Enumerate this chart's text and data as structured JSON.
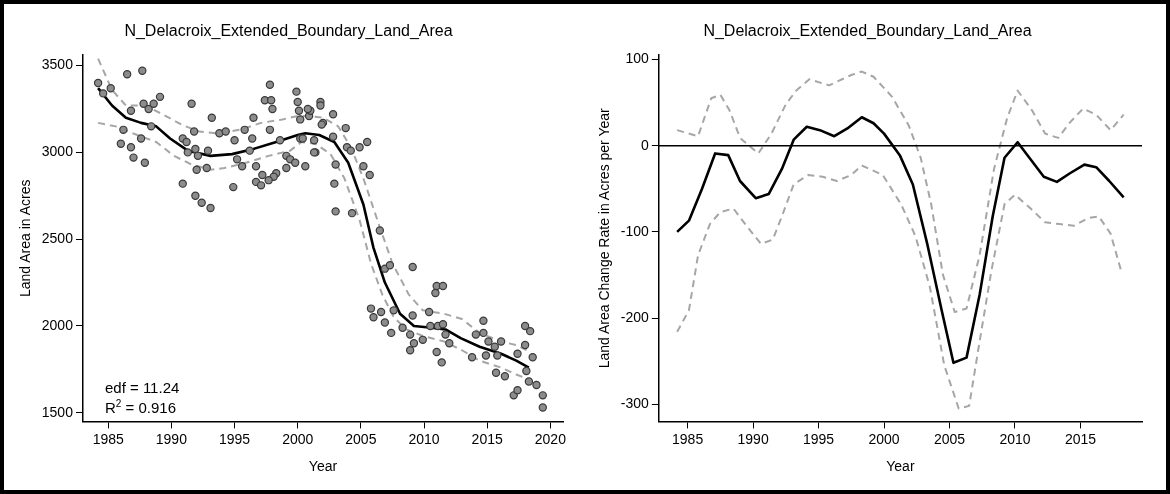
{
  "chart_data": [
    {
      "type": "scatter",
      "title": "N_Delacroix_Extended_Boundary_Land_Area",
      "xlabel": "Year",
      "ylabel": "Land Area in Acres",
      "xlim": [
        1983,
        2021
      ],
      "xticks": [
        1985,
        1990,
        1995,
        2000,
        2005,
        2010,
        2015,
        2020
      ],
      "ylim": [
        1450,
        3560
      ],
      "yticks": [
        1500,
        2000,
        2500,
        3000,
        3500
      ],
      "annotations": [
        "edf = 11.24",
        "R$^{2}$ = 0.916"
      ],
      "series": [
        {
          "marker": "circle",
          "color": "#8c8c8c",
          "x": [
            1984.2,
            1984.6,
            1985.2,
            1986.5,
            1987.7,
            1986.8,
            1986.2,
            1986.0,
            1986.8,
            1987.0,
            1987.9,
            1987.6,
            1987.8,
            1988.2,
            1988.6,
            1989.1,
            1988.4,
            1991.6,
            1990.9,
            1991.2,
            1991.3,
            1990.9,
            1991.9,
            1992.1,
            1992.0,
            1992.8,
            1992.9,
            1993.2,
            1991.9,
            1992.4,
            1993.1,
            1991.8,
            1993.8,
            1994.3,
            1994.9,
            1995.0,
            1995.2,
            1995.6,
            1995.8,
            1996.5,
            1996.4,
            1996.2,
            1996.7,
            1996.7,
            1997.1,
            1997.2,
            1997.4,
            1997.8,
            1997.9,
            1998.0,
            1997.8,
            1998.3,
            1998.1,
            1997.7,
            1998.6,
            1999.1,
            1999.1,
            1999.4,
            1999.8,
            1999.9,
            2000.0,
            2000.1,
            2000.6,
            2000.9,
            2001.0,
            2001.4,
            2001.8,
            2001.8,
            2002.0,
            2001.3,
            2000.2,
            2000.2,
            2000.8,
            2000.4,
            2001.3,
            2001.9,
            2002.8,
            2002.8,
            2003.8,
            2003.9,
            2004.2,
            2004.9,
            2005.5,
            2005.2,
            2005.7,
            2003.0,
            2002.9,
            2003.0,
            2004.3,
            2006.5,
            2006.9,
            2007.3,
            2009.1,
            2005.8,
            2006.0,
            2006.6,
            2006.9,
            2007.4,
            2007.6,
            2008.3,
            2008.9,
            2008.9,
            2009.2,
            2009.9,
            2009.1,
            2010.4,
            2010.9,
            2011.0,
            2011.5,
            2010.5,
            2011.1,
            2011.5,
            2011.7,
            2012.0,
            2011.0,
            2011.4,
            2013.8,
            2014.1,
            2014.7,
            2014.7,
            2015.1,
            2014.9,
            2015.6,
            2015.8,
            2016.1,
            2015.7,
            2016.4,
            2017.1,
            2017.4,
            2017.4,
            2018.0,
            2018.4,
            2018.0,
            2018.6,
            2018.1,
            2018.3,
            2018.9,
            2019.4,
            2019.4
          ],
          "values": [
            3400,
            3340,
            3370,
            3450,
            3470,
            3240,
            3130,
            3050,
            3030,
            2970,
            2940,
            3080,
            3280,
            3250,
            3280,
            3320,
            3150,
            3280,
            3080,
            3060,
            3000,
            2820,
            3020,
            2980,
            2900,
            2910,
            3010,
            3200,
            2750,
            2710,
            2680,
            3120,
            3110,
            3120,
            2800,
            3070,
            2960,
            2920,
            3130,
            3200,
            3080,
            3010,
            2920,
            2830,
            2810,
            2870,
            3300,
            3390,
            3300,
            3250,
            3130,
            2880,
            2860,
            2840,
            3070,
            2980,
            2910,
            2960,
            2940,
            3350,
            3290,
            3240,
            2920,
            3210,
            3240,
            3000,
            3290,
            3270,
            3170,
            3070,
            3080,
            3190,
            3250,
            3080,
            3000,
            3160,
            3220,
            3090,
            3140,
            3030,
            3010,
            3030,
            3060,
            2920,
            2870,
            2930,
            2820,
            2660,
            2650,
            2550,
            2330,
            2350,
            2340,
            2100,
            2050,
            2080,
            2020,
            1960,
            2090,
            1990,
            1950,
            1860,
            1900,
            1920,
            2060,
            2080,
            2190,
            2230,
            2230,
            2000,
            2000,
            2010,
            1950,
            1900,
            1850,
            1790,
            1820,
            1950,
            2030,
            1960,
            1910,
            1830,
            1880,
            1830,
            1910,
            1730,
            1710,
            1600,
            1630,
            1840,
            2000,
            1970,
            1890,
            1820,
            1740,
            1680,
            1660,
            1600,
            1530
          ]
        },
        {
          "type": "line",
          "line_style": "dashed",
          "color": "#a6a6a6",
          "x": [
            1984.2,
            1985.3,
            1986.4,
            1987.9,
            1989.3,
            1990.8,
            1992.2,
            1993.6,
            1995.4,
            1997.1,
            1998.8,
            2000.0,
            2000.9,
            2002.0,
            2003.2,
            2004.2,
            2005.2,
            2006.4,
            2007.5,
            2008.8,
            2009.9,
            2011.6,
            2013.0,
            2014.4,
            2016.1,
            2017.3,
            2018.4
          ],
          "values": [
            3540,
            3360,
            3270,
            3270,
            3220,
            3160,
            3120,
            3110,
            3130,
            3170,
            3190,
            3210,
            3210,
            3200,
            3150,
            3030,
            2850,
            2590,
            2360,
            2180,
            2090,
            2070,
            2040,
            1960,
            1910,
            1890,
            1850
          ]
        },
        {
          "type": "line",
          "line_style": "dashed",
          "color": "#a6a6a6",
          "x": [
            1984.2,
            1985.6,
            1987.3,
            1988.8,
            1990.2,
            1991.6,
            1993.1,
            1994.2,
            1995.9,
            1997.7,
            1999.4,
            2000.3,
            2001.4,
            2002.6,
            2003.7,
            2004.9,
            2005.8,
            2006.7,
            2007.6,
            2008.6,
            2010.0,
            2011.6,
            2013.0,
            2014.4,
            2016.1,
            2017.3,
            2018.4
          ],
          "values": [
            3170,
            3150,
            3100,
            3060,
            2980,
            2930,
            2900,
            2910,
            2940,
            2980,
            3010,
            3060,
            3050,
            2990,
            2850,
            2610,
            2360,
            2180,
            2050,
            1980,
            1940,
            1910,
            1860,
            1800,
            1760,
            1720,
            1690
          ]
        },
        {
          "type": "line",
          "line_style": "solid",
          "color": "#000000",
          "x": [
            1984.2,
            1985.3,
            1986.4,
            1987.6,
            1988.8,
            1989.9,
            1991.3,
            1993.1,
            1994.8,
            1996.5,
            1998.3,
            2000.0,
            2000.6,
            2001.7,
            2002.9,
            2004.0,
            2005.2,
            2006.0,
            2006.9,
            2008.1,
            2009.2,
            2010.6,
            2011.7,
            2012.9,
            2014.4,
            2016.1,
            2017.3,
            2018.3
          ],
          "values": [
            3370,
            3270,
            3200,
            3170,
            3150,
            3080,
            3010,
            2980,
            2990,
            3020,
            3060,
            3100,
            3110,
            3100,
            3060,
            2940,
            2700,
            2450,
            2250,
            2070,
            2000,
            1990,
            1980,
            1930,
            1880,
            1840,
            1800,
            1760
          ]
        }
      ]
    },
    {
      "type": "line",
      "title": "N_Delacroix_Extended_Boundary_Land_Area",
      "xlabel": "Year",
      "ylabel": "Land Area Change Rate in Acres per Year",
      "xlim": [
        1982.8,
        2019.7
      ],
      "xticks": [
        1985,
        1990,
        1995,
        2000,
        2005,
        2010,
        2015
      ],
      "ylim": [
        -320,
        105
      ],
      "yticks": [
        -300,
        -200,
        -100,
        0,
        100
      ],
      "ref_lines": [
        {
          "axis": "y",
          "value": 0,
          "color": "#000000"
        }
      ],
      "series": [
        {
          "line_style": "dashed",
          "color": "#a6a6a6",
          "x": [
            1984.2,
            1985.8,
            1986.8,
            1987.5,
            1988.2,
            1989.0,
            1990.4,
            1991.4,
            1992.5,
            1993.3,
            1994.3,
            1995.8,
            1997.5,
            1998.3,
            1999.2,
            2000.6,
            2001.9,
            2002.8,
            2003.6,
            2004.5,
            2005.4,
            2006.3,
            2007.3,
            2008.4,
            2009.4,
            2010.2,
            2011.3,
            2012.3,
            2013.3,
            2014.2,
            2015.2,
            2016.2,
            2017.3,
            2018.3
          ],
          "values": [
            18,
            11,
            55,
            59,
            41,
            9,
            -9,
            14,
            48,
            64,
            77,
            70,
            82,
            86,
            80,
            57,
            23,
            -14,
            -68,
            -150,
            -193,
            -189,
            -127,
            -27,
            32,
            64,
            41,
            14,
            9,
            27,
            43,
            36,
            18,
            36
          ]
        },
        {
          "line_style": "dashed",
          "color": "#a6a6a6",
          "x": [
            1984.2,
            1985.1,
            1985.8,
            1986.7,
            1987.5,
            1988.5,
            1989.4,
            1990.6,
            1991.5,
            1992.2,
            1993.1,
            1994.2,
            1995.3,
            1996.4,
            1997.5,
            1998.3,
            1999.9,
            2001.3,
            2002.4,
            2003.5,
            2004.6,
            2005.7,
            2006.5,
            2007.3,
            2008.2,
            2009.2,
            2010.0,
            2011.2,
            2012.3,
            2013.4,
            2014.5,
            2015.6,
            2016.4,
            2017.3,
            2018.1
          ],
          "values": [
            -216,
            -191,
            -127,
            -91,
            -77,
            -73,
            -91,
            -114,
            -109,
            -82,
            -45,
            -34,
            -36,
            -41,
            -34,
            -23,
            -34,
            -68,
            -105,
            -164,
            -255,
            -305,
            -302,
            -227,
            -145,
            -68,
            -57,
            -73,
            -89,
            -91,
            -93,
            -84,
            -82,
            -102,
            -145
          ]
        },
        {
          "line_style": "solid",
          "color": "#000000",
          "x": [
            1984.2,
            1985.1,
            1986.1,
            1987.1,
            1988.1,
            1989.0,
            1990.2,
            1991.2,
            1992.2,
            1993.1,
            1994.1,
            1995.1,
            1996.2,
            1997.2,
            1998.3,
            1999.2,
            2000.0,
            2001.2,
            2002.2,
            2003.3,
            2004.4,
            2005.3,
            2006.3,
            2007.3,
            2008.3,
            2009.2,
            2010.2,
            2011.2,
            2012.2,
            2013.2,
            2014.2,
            2015.3,
            2016.2,
            2017.2,
            2018.3
          ],
          "values": [
            -100,
            -87,
            -50,
            -9,
            -11,
            -41,
            -61,
            -56,
            -27,
            7,
            22,
            18,
            11,
            20,
            33,
            26,
            14,
            -11,
            -45,
            -114,
            -191,
            -252,
            -246,
            -173,
            -82,
            -14,
            4,
            -16,
            -36,
            -42,
            -32,
            -22,
            -25,
            -41,
            -60
          ]
        }
      ]
    }
  ]
}
